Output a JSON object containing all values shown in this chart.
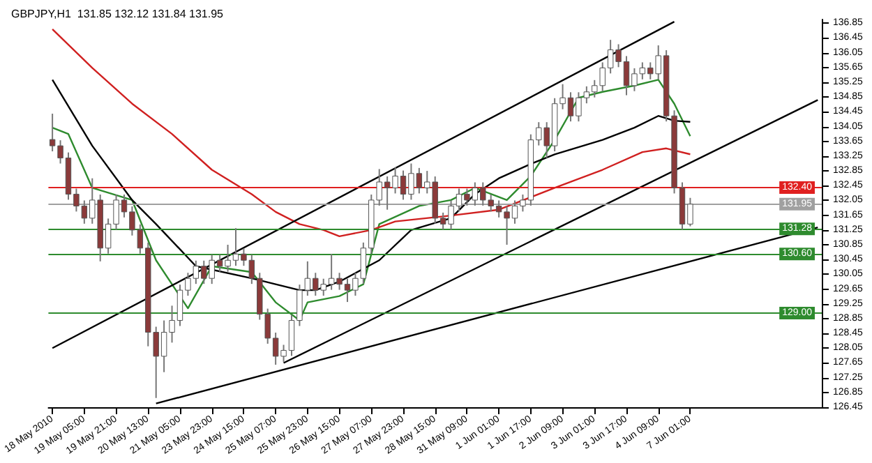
{
  "chart_data": {
    "type": "candlestick",
    "title": "GBPJPY,H1  131.85 132.12 131.84 131.95",
    "categories": [
      "18 May 2010",
      null,
      null,
      null,
      "19 May 05:00",
      null,
      null,
      null,
      "19 May 21:00",
      null,
      null,
      null,
      "20 May 13:00",
      null,
      null,
      null,
      "21 May 05:00",
      null,
      null,
      null,
      "23 May 23:00",
      null,
      null,
      null,
      "24 May 15:00",
      null,
      null,
      null,
      "25 May 07:00",
      null,
      null,
      null,
      "25 May 23:00",
      null,
      null,
      null,
      "26 May 15:00",
      null,
      null,
      null,
      "27 May 07:00",
      null,
      null,
      null,
      "27 May 23:00",
      null,
      null,
      null,
      "28 May 15:00",
      null,
      null,
      null,
      "31 May 09:00",
      null,
      null,
      null,
      "1 Jun 01:00",
      null,
      null,
      null,
      "1 Jun 17:00",
      null,
      null,
      null,
      "2 Jun 09:00",
      null,
      null,
      null,
      "3 Jun 01:00",
      null,
      null,
      null,
      "3 Jun 17:00",
      null,
      null,
      null,
      "4 Jun 09:00",
      null,
      null,
      null,
      "7 Jun 01:00",
      null,
      null,
      null,
      null,
      null,
      null,
      null,
      null,
      null,
      null,
      null,
      null,
      null,
      null,
      null,
      null
    ],
    "ylim": [
      126.45,
      136.95
    ],
    "yticks": [
      126.45,
      126.85,
      127.25,
      127.65,
      128.05,
      128.45,
      128.85,
      129.25,
      129.65,
      130.05,
      130.45,
      130.85,
      131.25,
      131.65,
      132.05,
      132.45,
      132.85,
      133.25,
      133.65,
      134.05,
      134.45,
      134.85,
      135.25,
      135.65,
      136.05,
      136.45,
      136.85
    ],
    "grid": false,
    "ref_lines": [
      {
        "axis": "y",
        "value": 132.4,
        "label": "132.40",
        "color": "#e02020"
      },
      {
        "axis": "y",
        "value": 131.95,
        "label": "131.95",
        "color": "#a0a0a0"
      },
      {
        "axis": "y",
        "value": 131.28,
        "label": "131.28",
        "color": "#2e8b2e"
      },
      {
        "axis": "y",
        "value": 130.6,
        "label": "130.60",
        "color": "#2e8b2e"
      },
      {
        "axis": "y",
        "value": 129.0,
        "label": "129.00",
        "color": "#2e8b2e"
      }
    ],
    "series": [
      {
        "colors": [
          "#8b3a3a",
          "#8b3a3a",
          "#8b3a3a",
          "#8b3a3a",
          "#8b3a3a",
          "#ffffff",
          "#8b3a3a",
          "#ffffff",
          "#ffffff",
          "#8b3a3a",
          "#8b3a3a",
          "#8b3a3a",
          "#8b3a3a",
          "#8b3a3a",
          "#ffffff",
          "#ffffff",
          "#ffffff",
          "#ffffff",
          "#ffffff",
          "#8b3a3a",
          "#ffffff",
          "#8b3a3a",
          "#ffffff",
          "#ffffff",
          "#8b3a3a",
          "#8b3a3a",
          "#8b3a3a",
          "#8b3a3a",
          "#8b3a3a",
          "#ffffff",
          "#ffffff",
          "#ffffff",
          "#ffffff",
          "#8b3a3a",
          "#ffffff",
          "#ffffff",
          "#8b3a3a",
          "#8b3a3a",
          "#ffffff",
          "#ffffff",
          "#ffffff",
          "#ffffff",
          "#8b3a3a",
          "#ffffff",
          "#8b3a3a",
          "#ffffff",
          "#8b3a3a",
          "#ffffff",
          "#8b3a3a",
          "#8b3a3a",
          "#ffffff",
          "#ffffff",
          "#8b3a3a",
          "#ffffff",
          "#8b3a3a",
          "#8b3a3a",
          "#8b3a3a",
          "#8b3a3a",
          "#ffffff",
          "#ffffff",
          "#ffffff",
          "#ffffff",
          "#8b3a3a",
          "#ffffff",
          "#ffffff",
          "#8b3a3a",
          "#ffffff",
          "#ffffff",
          "#ffffff",
          "#ffffff",
          "#ffffff",
          "#8b3a3a",
          "#8b3a3a",
          "#ffffff",
          "#ffffff",
          "#8b3a3a",
          "#ffffff",
          "#8b3a3a",
          "#8b3a3a",
          "#8b3a3a",
          "#ffffff",
          null,
          null,
          null,
          null,
          null,
          null,
          null,
          null,
          null,
          null,
          null,
          null,
          null,
          null,
          null,
          null
        ],
        "ohlc": [
          [
            133.7,
            134.4,
            133.38,
            133.53
          ],
          [
            133.53,
            133.68,
            133.05,
            133.2
          ],
          [
            133.2,
            133.35,
            132.07,
            132.22
          ],
          [
            132.22,
            132.37,
            131.75,
            131.9
          ],
          [
            131.9,
            132.05,
            131.42,
            131.57
          ],
          [
            131.57,
            132.65,
            131.42,
            132.06
          ],
          [
            132.06,
            132.21,
            130.4,
            130.76
          ],
          [
            130.76,
            131.56,
            130.61,
            131.41
          ],
          [
            131.41,
            132.21,
            131.26,
            132.06
          ],
          [
            132.06,
            132.21,
            131.59,
            131.74
          ],
          [
            131.74,
            131.89,
            131.1,
            131.25
          ],
          [
            131.25,
            131.4,
            130.61,
            130.76
          ],
          [
            130.76,
            130.91,
            128.1,
            128.48
          ],
          [
            128.48,
            128.63,
            126.7,
            127.83
          ],
          [
            127.83,
            128.8,
            127.4,
            128.48
          ],
          [
            128.48,
            129.2,
            128.2,
            128.8
          ],
          [
            128.8,
            129.77,
            128.65,
            129.62
          ],
          [
            129.62,
            130.09,
            129.47,
            129.94
          ],
          [
            129.94,
            130.42,
            129.79,
            130.27
          ],
          [
            130.27,
            130.42,
            129.79,
            129.94
          ],
          [
            129.94,
            130.58,
            129.79,
            130.43
          ],
          [
            130.43,
            130.58,
            130.12,
            130.27
          ],
          [
            130.27,
            130.85,
            130.12,
            130.43
          ],
          [
            130.43,
            131.3,
            130.28,
            130.6
          ],
          [
            130.6,
            130.75,
            130.28,
            130.43
          ],
          [
            130.43,
            130.58,
            129.79,
            129.94
          ],
          [
            129.94,
            130.09,
            128.82,
            128.97
          ],
          [
            128.97,
            129.12,
            128.17,
            128.32
          ],
          [
            128.32,
            128.47,
            127.6,
            127.83
          ],
          [
            127.83,
            128.14,
            127.68,
            127.99
          ],
          [
            127.99,
            128.95,
            127.84,
            128.8
          ],
          [
            128.8,
            129.77,
            128.65,
            129.62
          ],
          [
            129.62,
            130.4,
            129.47,
            129.94
          ],
          [
            129.94,
            130.09,
            129.47,
            129.62
          ],
          [
            129.62,
            129.93,
            129.47,
            129.78
          ],
          [
            129.78,
            130.6,
            129.63,
            129.94
          ],
          [
            129.94,
            130.09,
            129.63,
            129.78
          ],
          [
            129.78,
            129.93,
            129.3,
            129.62
          ],
          [
            129.62,
            130.09,
            129.47,
            129.94
          ],
          [
            129.94,
            130.91,
            129.79,
            130.76
          ],
          [
            130.76,
            132.21,
            130.61,
            132.06
          ],
          [
            132.06,
            132.9,
            131.91,
            132.55
          ],
          [
            132.55,
            132.7,
            131.8,
            132.39
          ],
          [
            132.39,
            132.95,
            132.24,
            132.71
          ],
          [
            132.71,
            132.86,
            132.07,
            132.22
          ],
          [
            132.22,
            133.05,
            132.07,
            132.78
          ],
          [
            132.78,
            132.93,
            132.24,
            132.39
          ],
          [
            132.39,
            132.85,
            132.24,
            132.55
          ],
          [
            132.55,
            132.7,
            131.42,
            131.57
          ],
          [
            131.57,
            131.72,
            131.26,
            131.41
          ],
          [
            131.41,
            132.05,
            131.26,
            131.9
          ],
          [
            131.9,
            132.37,
            131.75,
            132.22
          ],
          [
            132.22,
            132.37,
            131.91,
            132.06
          ],
          [
            132.06,
            132.54,
            131.91,
            132.39
          ],
          [
            132.39,
            132.54,
            131.91,
            132.06
          ],
          [
            132.06,
            132.21,
            131.75,
            131.9
          ],
          [
            131.9,
            132.05,
            131.59,
            131.74
          ],
          [
            131.74,
            131.89,
            130.85,
            131.57
          ],
          [
            131.57,
            132.05,
            131.42,
            131.9
          ],
          [
            131.9,
            132.21,
            131.75,
            132.06
          ],
          [
            132.06,
            133.84,
            131.91,
            133.69
          ],
          [
            133.69,
            134.17,
            133.54,
            134.02
          ],
          [
            134.02,
            134.17,
            133.2,
            133.53
          ],
          [
            133.53,
            134.82,
            133.38,
            134.67
          ],
          [
            134.67,
            135.2,
            134.52,
            134.83
          ],
          [
            134.83,
            134.98,
            134.19,
            134.34
          ],
          [
            134.34,
            134.98,
            134.19,
            134.83
          ],
          [
            134.83,
            135.14,
            134.68,
            134.99
          ],
          [
            134.99,
            135.31,
            134.84,
            135.16
          ],
          [
            135.16,
            135.79,
            135.01,
            135.64
          ],
          [
            135.64,
            136.4,
            135.49,
            136.13
          ],
          [
            136.13,
            136.28,
            135.66,
            135.81
          ],
          [
            135.81,
            135.96,
            134.9,
            135.16
          ],
          [
            135.16,
            135.63,
            135.01,
            135.48
          ],
          [
            135.48,
            135.79,
            135.33,
            135.64
          ],
          [
            135.64,
            135.79,
            135.33,
            135.48
          ],
          [
            135.48,
            136.25,
            135.33,
            135.97
          ],
          [
            135.97,
            136.12,
            134.19,
            134.34
          ],
          [
            134.34,
            134.49,
            132.24,
            132.39
          ],
          [
            132.39,
            132.54,
            131.26,
            131.41
          ],
          [
            131.41,
            132.12,
            131.35,
            131.95
          ],
          null,
          null,
          null,
          null,
          null,
          null,
          null,
          null,
          null,
          null,
          null,
          null,
          null,
          null,
          null,
          null
        ]
      },
      {
        "type": "line",
        "color": "#2e8b2e",
        "values": [
          134.02,
          null,
          133.85,
          null,
          null,
          132.39,
          null,
          null,
          null,
          null,
          132.06,
          null,
          null,
          130.43,
          null,
          null,
          null,
          129.13,
          null,
          null,
          130.27,
          null,
          null,
          null,
          null,
          130.11,
          null,
          null,
          129.29,
          null,
          null,
          128.8,
          129.29,
          null,
          null,
          null,
          129.46,
          null,
          null,
          129.78,
          null,
          131.41,
          null,
          null,
          null,
          null,
          131.9,
          null,
          null,
          null,
          132.06,
          null,
          null,
          132.39,
          null,
          null,
          null,
          132.06,
          null,
          null,
          132.71,
          null,
          null,
          133.69,
          null,
          null,
          134.83,
          null,
          null,
          134.99,
          null,
          null,
          null,
          135.16,
          null,
          null,
          135.32,
          null,
          134.67,
          null,
          133.79,
          null,
          null,
          null,
          null,
          null,
          null,
          null,
          null,
          null,
          null,
          null,
          null,
          null,
          null,
          null,
          null
        ]
      },
      {
        "type": "line",
        "color": "#000000",
        "values": [
          135.32,
          null,
          null,
          null,
          null,
          133.53,
          null,
          null,
          null,
          null,
          132.06,
          null,
          null,
          131.41,
          null,
          null,
          null,
          null,
          130.27,
          null,
          null,
          null,
          null,
          null,
          null,
          129.94,
          null,
          null,
          null,
          null,
          null,
          129.62,
          null,
          129.62,
          null,
          null,
          129.85,
          null,
          null,
          null,
          null,
          130.43,
          null,
          null,
          null,
          131.25,
          null,
          null,
          null,
          null,
          131.57,
          null,
          null,
          132.22,
          null,
          null,
          132.65,
          null,
          null,
          null,
          133.04,
          null,
          null,
          133.3,
          null,
          null,
          null,
          null,
          null,
          133.69,
          null,
          null,
          null,
          134.02,
          null,
          null,
          134.34,
          null,
          134.21,
          null,
          134.18,
          null,
          null,
          null,
          null,
          null,
          null,
          null,
          null,
          null,
          null,
          null,
          null,
          null,
          null,
          null,
          null
        ]
      },
      {
        "type": "line",
        "color": "#d02020",
        "values": [
          136.69,
          null,
          null,
          null,
          null,
          135.64,
          null,
          null,
          null,
          null,
          134.67,
          null,
          null,
          null,
          null,
          133.85,
          null,
          null,
          null,
          null,
          132.88,
          null,
          null,
          null,
          null,
          132.22,
          null,
          null,
          131.74,
          null,
          null,
          131.41,
          null,
          null,
          131.25,
          null,
          131.08,
          null,
          null,
          null,
          131.25,
          null,
          null,
          131.48,
          null,
          null,
          null,
          null,
          null,
          null,
          131.64,
          null,
          null,
          null,
          null,
          null,
          131.8,
          null,
          null,
          null,
          null,
          null,
          null,
          132.39,
          null,
          null,
          null,
          null,
          null,
          132.88,
          null,
          null,
          null,
          null,
          133.36,
          null,
          null,
          133.46,
          null,
          null,
          133.3,
          null,
          null,
          null,
          null,
          null,
          null,
          null,
          null,
          null,
          null,
          null,
          null,
          null,
          null,
          null,
          null
        ]
      },
      {
        "type": "line",
        "color": "#000000",
        "values": [
          128.05,
          null,
          null,
          null,
          null,
          null,
          null,
          null,
          null,
          null,
          null,
          null,
          null,
          null,
          null,
          null,
          null,
          null,
          null,
          null,
          null,
          null,
          null,
          null,
          null,
          null,
          null,
          null,
          null,
          null,
          null,
          null,
          null,
          null,
          null,
          null,
          null,
          null,
          null,
          null,
          null,
          null,
          null,
          null,
          null,
          null,
          null,
          null,
          null,
          null,
          null,
          null,
          null,
          null,
          null,
          null,
          null,
          null,
          null,
          null,
          null,
          null,
          null,
          null,
          null,
          null,
          null,
          null,
          null,
          null,
          null,
          null,
          null,
          null,
          null,
          null,
          null,
          null,
          136.89,
          null,
          null,
          null,
          null,
          null,
          null,
          null,
          null,
          null,
          null,
          null,
          null,
          null,
          null,
          null,
          null,
          null,
          null
        ]
      },
      {
        "type": "line",
        "color": "#000000",
        "values": [
          null,
          null,
          null,
          null,
          null,
          null,
          null,
          null,
          null,
          null,
          null,
          null,
          null,
          126.55,
          null,
          null,
          null,
          null,
          null,
          null,
          null,
          null,
          null,
          null,
          null,
          null,
          null,
          null,
          null,
          null,
          null,
          null,
          null,
          null,
          null,
          null,
          null,
          null,
          null,
          null,
          null,
          null,
          null,
          null,
          null,
          null,
          null,
          null,
          null,
          null,
          null,
          null,
          null,
          null,
          null,
          null,
          null,
          null,
          null,
          null,
          null,
          null,
          null,
          null,
          null,
          null,
          null,
          null,
          null,
          null,
          null,
          null,
          null,
          null,
          null,
          null,
          null,
          null,
          null,
          null,
          null,
          null,
          null,
          null,
          null,
          null,
          null,
          null,
          null,
          null,
          null,
          null,
          null,
          null,
          null,
          null,
          131.32
        ]
      },
      {
        "type": "line",
        "color": "#000000",
        "values": [
          null,
          null,
          null,
          null,
          null,
          null,
          null,
          null,
          null,
          null,
          null,
          null,
          null,
          null,
          null,
          null,
          null,
          null,
          null,
          null,
          null,
          null,
          null,
          null,
          null,
          null,
          null,
          null,
          null,
          127.65,
          null,
          null,
          null,
          null,
          null,
          null,
          null,
          null,
          null,
          null,
          null,
          null,
          null,
          null,
          null,
          null,
          null,
          null,
          null,
          null,
          null,
          null,
          null,
          null,
          null,
          null,
          null,
          null,
          null,
          null,
          null,
          null,
          null,
          null,
          null,
          null,
          null,
          null,
          null,
          null,
          null,
          null,
          null,
          null,
          null,
          null,
          null,
          null,
          null,
          null,
          null,
          null,
          null,
          null,
          null,
          null,
          null,
          null,
          null,
          null,
          null,
          null,
          null,
          null,
          null,
          null,
          134.77
        ]
      }
    ]
  }
}
